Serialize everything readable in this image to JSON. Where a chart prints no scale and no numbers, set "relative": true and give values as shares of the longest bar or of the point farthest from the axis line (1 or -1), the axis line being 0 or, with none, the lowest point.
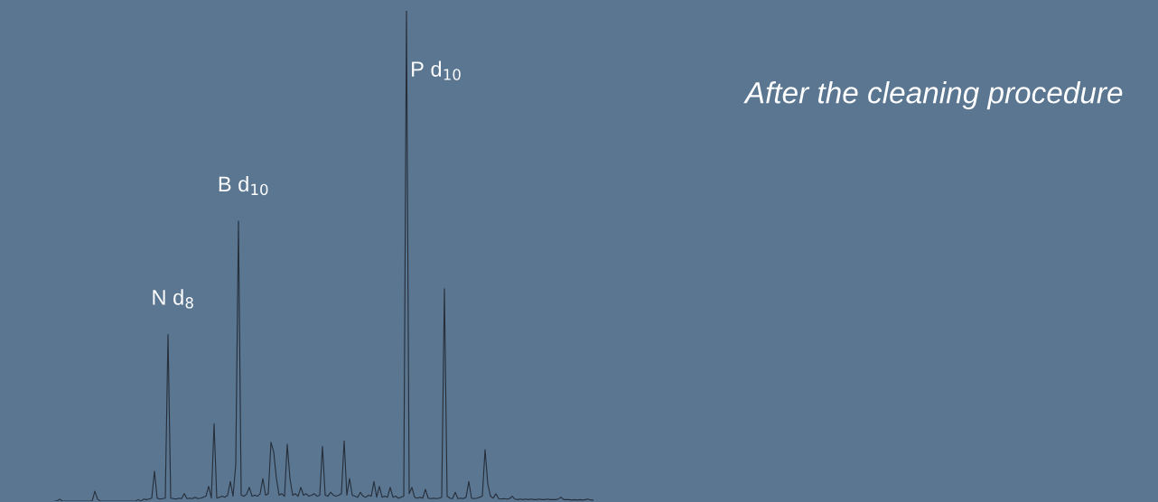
{
  "chart_data": {
    "type": "line",
    "relative": true,
    "title": "After the cleaning procedure",
    "color": "#262e3a",
    "categories": [
      null,
      null,
      null,
      null,
      null,
      null,
      null,
      null,
      null,
      null,
      null,
      null,
      null,
      null,
      null,
      null,
      null,
      null,
      null,
      null,
      null,
      null,
      null,
      null,
      null,
      null,
      null,
      null,
      null,
      null,
      null,
      null,
      null,
      null,
      null,
      null,
      null,
      null,
      null,
      null,
      null,
      null,
      null,
      null,
      null,
      null,
      null,
      null,
      null,
      null,
      null,
      null,
      null,
      null,
      null,
      null,
      null,
      null,
      null,
      null,
      null,
      null,
      null,
      null,
      null,
      null,
      null,
      null,
      null,
      null,
      null,
      null,
      null,
      null,
      null,
      null,
      null,
      null,
      null,
      null,
      null,
      null,
      null,
      null,
      null,
      null,
      null,
      null,
      null,
      null,
      null,
      null,
      null,
      null,
      null,
      null,
      null,
      null,
      null,
      null,
      null,
      null,
      null,
      null,
      null,
      null,
      null,
      null,
      null,
      null,
      null,
      null,
      null,
      null,
      null,
      null,
      null,
      null,
      null,
      null,
      null,
      null,
      null,
      null,
      null,
      null,
      null,
      null,
      null,
      null,
      null,
      null,
      null,
      null,
      null,
      null,
      null,
      null,
      null,
      null,
      null,
      null,
      null,
      null,
      null,
      null,
      null,
      null,
      null,
      null,
      null,
      null,
      null,
      null,
      null,
      null,
      null,
      null,
      null,
      null,
      null,
      null,
      null,
      null,
      null,
      null,
      null,
      null,
      null,
      null,
      null,
      null,
      null,
      null,
      null,
      null,
      null,
      null,
      null,
      null,
      null,
      null,
      null,
      null,
      null,
      null,
      null,
      null,
      null,
      null,
      null,
      null,
      null,
      null,
      null,
      null,
      null,
      null,
      null,
      null
    ],
    "values": [
      0,
      0,
      0.004,
      0,
      0,
      0,
      0,
      0,
      0,
      0,
      0,
      0,
      0,
      0,
      0,
      0.02,
      0.004,
      0,
      0,
      0,
      0,
      0,
      0,
      0,
      0,
      0,
      0,
      0,
      0,
      0,
      0,
      0.003,
      0,
      0.004,
      0.003,
      0.004,
      0.006,
      0.061,
      0.006,
      0.004,
      0.005,
      0.006,
      0.34,
      0.006,
      0.005,
      0.004,
      0.006,
      0.005,
      0.015,
      0.005,
      0.006,
      0.005,
      0.008,
      0.005,
      0.006,
      0.008,
      0.01,
      0.03,
      0.006,
      0.158,
      0.006,
      0.008,
      0.01,
      0.008,
      0.012,
      0.04,
      0.01,
      0.075,
      0.571,
      0.012,
      0.01,
      0.014,
      0.028,
      0.01,
      0.012,
      0.01,
      0.015,
      0.046,
      0.012,
      0.015,
      0.12,
      0.1,
      0.046,
      0.012,
      0.015,
      0.01,
      0.116,
      0.046,
      0.012,
      0.015,
      0.01,
      0.028,
      0.012,
      0.015,
      0.01,
      0.012,
      0.015,
      0.01,
      0.012,
      0.112,
      0.012,
      0.01,
      0.018,
      0.012,
      0.01,
      0.012,
      0.015,
      0.123,
      0.012,
      0.046,
      0.012,
      0.01,
      0.008,
      0.018,
      0.01,
      0.008,
      0.012,
      0.01,
      0.04,
      0.008,
      0.03,
      0.008,
      0.01,
      0.008,
      0.028,
      0.008,
      0.01,
      0.006,
      0.008,
      0.01,
      1.0,
      0.015,
      0.028,
      0.008,
      0.006,
      0.008,
      0.006,
      0.024,
      0.006,
      0.005,
      0.006,
      0.005,
      0.006,
      0.008,
      0.433,
      0.01,
      0.006,
      0.005,
      0.018,
      0.005,
      0.006,
      0.005,
      0.008,
      0.04,
      0.006,
      0.005,
      0.006,
      0.008,
      0.01,
      0.105,
      0.035,
      0.01,
      0.006,
      0.015,
      0.005,
      0.004,
      0.005,
      0.004,
      0.005,
      0.01,
      0.004,
      0.003,
      0.004,
      0.003,
      0.004,
      0.003,
      0.004,
      0.003,
      0.003,
      0.004,
      0.003,
      0.003,
      0.004,
      0.003,
      0.003,
      0.003,
      0.004,
      0.008,
      0.003,
      0.003,
      0.003,
      0.002,
      0.003,
      0.002,
      0.003,
      0.002,
      0.003,
      0.004,
      0.002,
      0.002
    ],
    "annotations": [
      "N d$_{8}$",
      "B d$_{10}$",
      "P d$_{10}$"
    ]
  }
}
